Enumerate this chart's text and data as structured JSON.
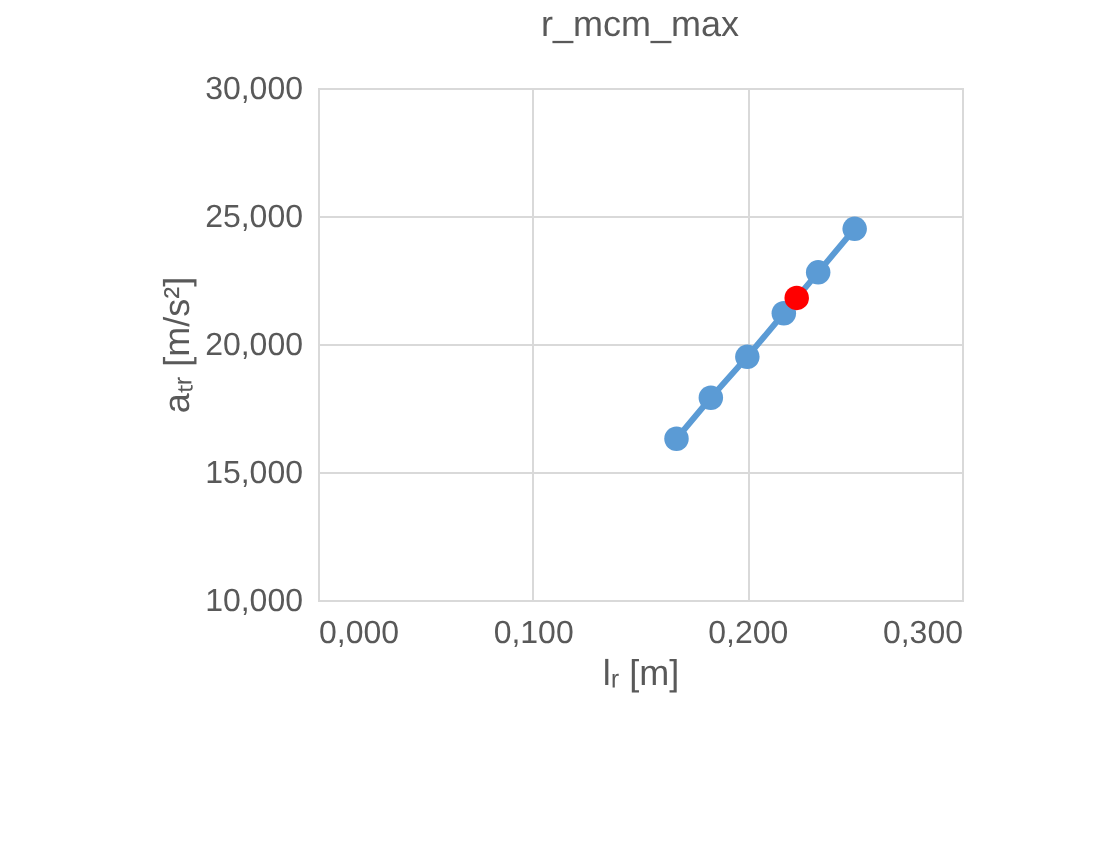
{
  "chart_data": {
    "type": "line",
    "title": "r_mcm_max",
    "xlabel": "lᵣ [m]",
    "ylabel": "aₜᵣ [m/s²]",
    "x": [
      0.167,
      0.183,
      0.2,
      0.217,
      0.233,
      0.25
    ],
    "series": [
      {
        "color": "#5b9bd5",
        "values": [
          16.3,
          17.9,
          19.5,
          21.2,
          22.8,
          24.5
        ]
      },
      {
        "type": "scatter",
        "color": "#ff0000",
        "x": [
          0.223
        ],
        "values": [
          21.8
        ]
      }
    ],
    "xlim": [
      0,
      0.3
    ],
    "xticks": [
      {
        "value": 0,
        "label": "0,000"
      },
      {
        "value": 0.1,
        "label": "0,100"
      },
      {
        "value": 0.2,
        "label": "0,200"
      },
      {
        "value": 0.3,
        "label": "0,300"
      }
    ],
    "ylim": [
      10,
      30
    ],
    "yticks": [
      {
        "value": 10,
        "label": "10,000"
      },
      {
        "value": 15,
        "label": "15,000"
      },
      {
        "value": 20,
        "label": "20,000"
      },
      {
        "value": 25,
        "label": "25,000"
      },
      {
        "value": 30,
        "label": "30,000"
      }
    ],
    "grid": true,
    "marker": "circle",
    "line_style": "solid"
  }
}
